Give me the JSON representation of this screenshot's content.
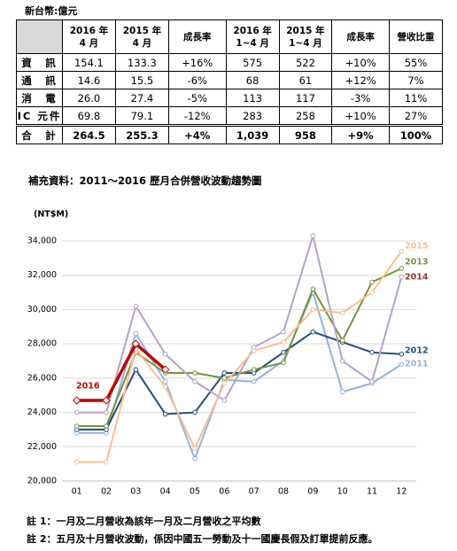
{
  "unit_note": "新台幣:億元",
  "table": {
    "header": [
      [],
      [
        "2016 年",
        "4 月"
      ],
      [
        "2015 年",
        "4 月"
      ],
      [
        "成長率"
      ],
      [
        "2016 年",
        "1~4 月"
      ],
      [
        "2015 年",
        "1~4 月"
      ],
      [
        "成長率"
      ],
      [
        "營收比重"
      ]
    ],
    "rows": [
      [
        "資　訊",
        "154.1",
        "133.3",
        "+16%",
        "575",
        "522",
        "+10%",
        "55%"
      ],
      [
        "通　訊",
        "14.6",
        "15.5",
        "-6%",
        "68",
        "61",
        "+12%",
        "7%"
      ],
      [
        "消　電",
        "26.0",
        "27.4",
        "-5%",
        "113",
        "117",
        "-3%",
        "11%"
      ],
      [
        "IC 元件",
        "69.8",
        "79.1",
        "-12%",
        "283",
        "258",
        "+10%",
        "27%"
      ],
      [
        "合　計",
        "264.5",
        "255.3",
        "+4%",
        "1,039",
        "958",
        "+9%",
        "100%"
      ]
    ]
  },
  "chart_data": {
    "type": "line",
    "title": "補充資料：2011～2016 歷月合併營收波動趨勢圖",
    "y_label": "(NT$M)",
    "categories": [
      "01",
      "02",
      "03",
      "04",
      "05",
      "06",
      "07",
      "08",
      "09",
      "10",
      "11",
      "12"
    ],
    "ylim": [
      20000,
      34000
    ],
    "yticks": [
      {
        "value": 20000,
        "label": "20,000"
      },
      {
        "value": 22000,
        "label": "22,000"
      },
      {
        "value": 24000,
        "label": "24,000"
      },
      {
        "value": 26000,
        "label": "26,000"
      },
      {
        "value": 28000,
        "label": "28,000"
      },
      {
        "value": 30000,
        "label": "30,000"
      },
      {
        "value": 32000,
        "label": "32,000"
      },
      {
        "value": 34000,
        "label": "34,000"
      }
    ],
    "grid": true,
    "series": [
      {
        "name": "2011",
        "color": "#8fb4de",
        "values": [
          22800,
          22800,
          28600,
          25800,
          21300,
          25900,
          25800,
          27000,
          31000,
          25200,
          25700,
          26800
        ]
      },
      {
        "name": "2012",
        "color": "#1f4e79",
        "values": [
          23000,
          23000,
          26500,
          23900,
          24000,
          26300,
          26300,
          27500,
          28700,
          28100,
          27500,
          27400
        ]
      },
      {
        "name": "2013",
        "color": "#77933c",
        "values": [
          23200,
          23200,
          27500,
          26300,
          26300,
          26000,
          26500,
          26900,
          31200,
          28200,
          31600,
          32400
        ]
      },
      {
        "name": "2014",
        "color": "#b3a2c7",
        "values": [
          24000,
          24000,
          30200,
          27400,
          25800,
          24700,
          27800,
          28700,
          34300,
          27000,
          25800,
          31900
        ]
      },
      {
        "name": "2015",
        "color": "#f9bf8f",
        "values": [
          21100,
          21100,
          27700,
          25500,
          21900,
          25700,
          27600,
          28100,
          30000,
          29800,
          31000,
          33400
        ]
      },
      {
        "name": "2016",
        "color": "#c00000",
        "values": [
          24700,
          24700,
          28000,
          26500,
          null,
          null,
          null,
          null,
          null,
          null,
          null,
          null
        ]
      }
    ]
  },
  "notes": [
    "註 1：一月及二月營收為該年一月及二月營收之平均數",
    "註 2：五月及十月營收波動，係因中國五一勞動及十一國慶長假及訂單提前反應。"
  ]
}
